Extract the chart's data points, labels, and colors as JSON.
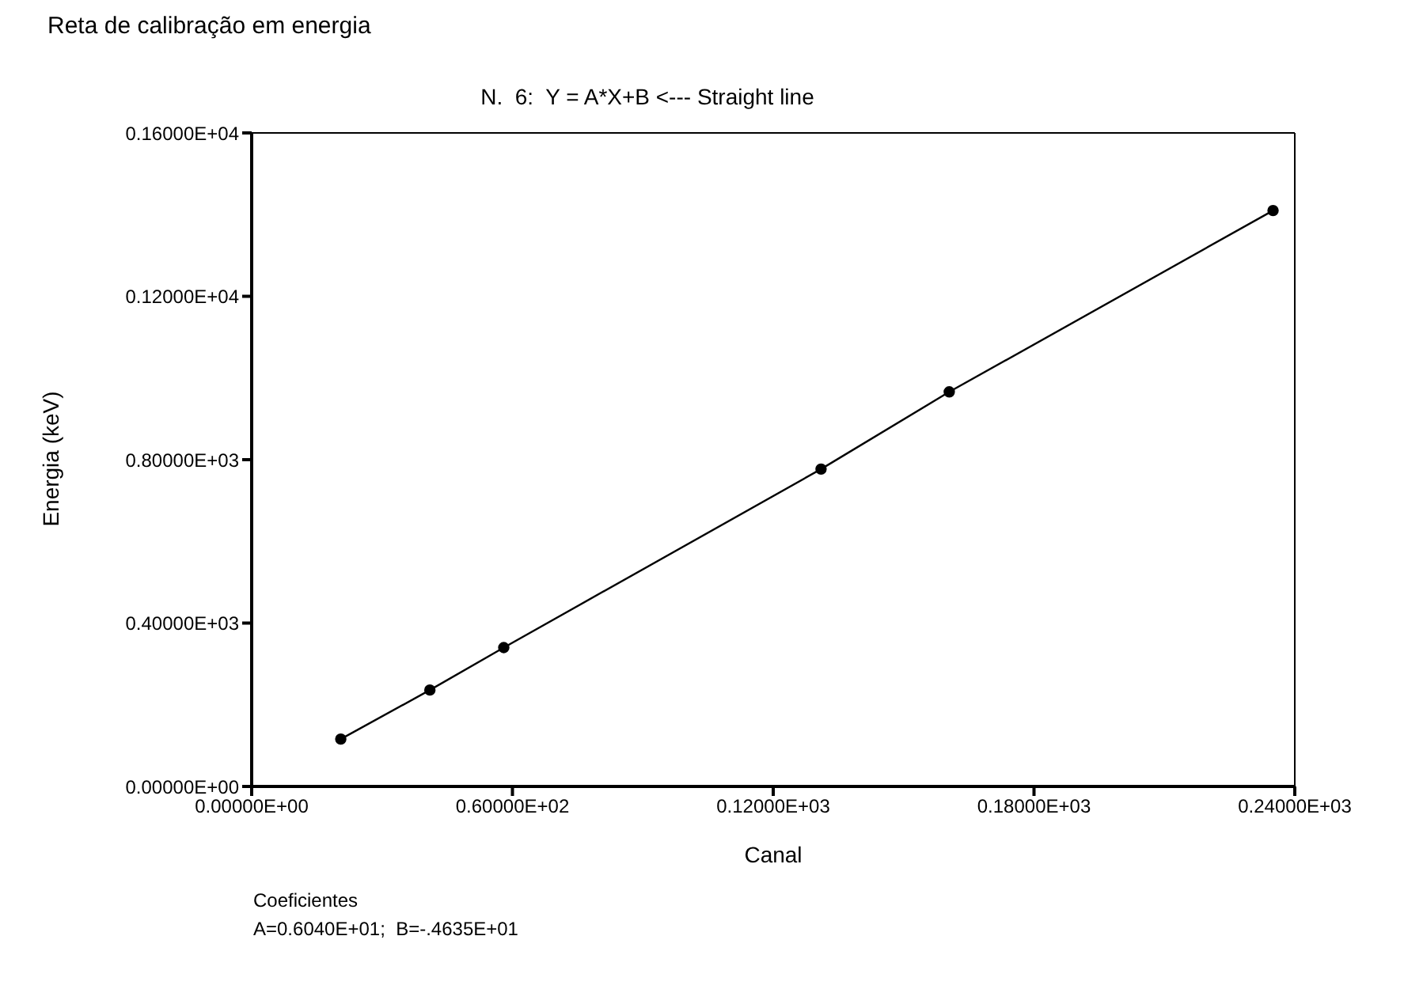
{
  "chart_data": {
    "type": "line",
    "title": "Reta de calibração em energia",
    "subtitle": "N.  6:  Y = A*X+B <--- Straight line",
    "xlabel": "Canal",
    "ylabel": "Energia (keV)",
    "annotations": [
      "Coeficientes",
      "A=0.6040E+01;  B=-.4635E+01"
    ],
    "x": [
      20.5,
      41,
      58,
      131,
      160.5,
      235
    ],
    "series": [
      {
        "color": "#000000",
        "values": [
          116,
          236,
          340,
          777,
          966,
          1410
        ]
      }
    ],
    "marker": "circle",
    "line_style": "solid",
    "grid": false,
    "xlim": [
      0,
      240
    ],
    "xticks": [
      {
        "value": 0,
        "label": "0.00000E+00"
      },
      {
        "value": 60,
        "label": "0.60000E+02"
      },
      {
        "value": 120,
        "label": "0.12000E+03"
      },
      {
        "value": 180,
        "label": "0.18000E+03"
      },
      {
        "value": 240,
        "label": "0.24000E+03"
      }
    ],
    "ylim": [
      0,
      1600
    ],
    "yticks": [
      {
        "value": 0,
        "label": "0.00000E+00"
      },
      {
        "value": 400,
        "label": "0.40000E+03"
      },
      {
        "value": 800,
        "label": "0.80000E+03"
      },
      {
        "value": 1200,
        "label": "0.12000E+04"
      },
      {
        "value": 1600,
        "label": "0.16000E+04"
      }
    ]
  }
}
